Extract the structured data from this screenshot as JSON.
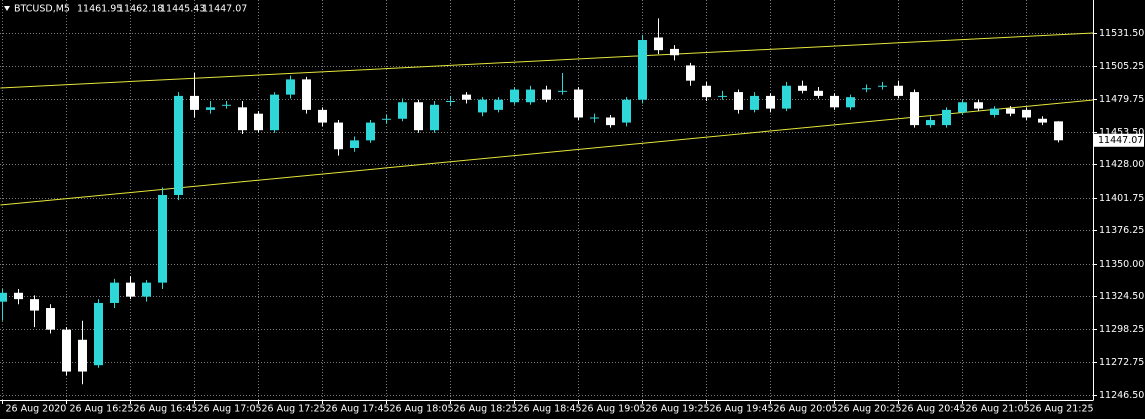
{
  "chart_data": {
    "type": "candlestick",
    "symbol": "BTCUSD,M5",
    "categories": [
      "26 Aug 2020",
      null,
      null,
      null,
      "26 Aug 16:25",
      null,
      null,
      null,
      "26 Aug 16:45",
      null,
      null,
      null,
      "26 Aug 17:05",
      null,
      null,
      null,
      "26 Aug 17:25",
      null,
      null,
      null,
      "26 Aug 17:45",
      null,
      null,
      null,
      "26 Aug 18:05",
      null,
      null,
      null,
      "26 Aug 18:25",
      null,
      null,
      null,
      "26 Aug 18:45",
      null,
      null,
      null,
      "26 Aug 19:05",
      null,
      null,
      null,
      "26 Aug 19:25",
      null,
      null,
      null,
      "26 Aug 19:45",
      null,
      null,
      null,
      "26 Aug 20:05",
      null,
      null,
      null,
      "26 Aug 20:25",
      null,
      null,
      null,
      "26 Aug 20:45",
      null,
      null,
      null,
      "26 Aug 21:05",
      null,
      null,
      null,
      "26 Aug 21:25",
      null,
      null
    ],
    "open": [
      11320,
      11327,
      11322,
      11315,
      11298,
      11290,
      11270,
      11319,
      11335,
      11324,
      11335,
      11404,
      11482,
      11471,
      11475,
      11473,
      11468,
      11455,
      11483,
      11495,
      11471,
      11461,
      11441,
      11447,
      11464,
      11464,
      11477,
      11455,
      11478,
      11483,
      11469,
      11471,
      11477,
      11477,
      11487,
      11486,
      11487,
      11465,
      11465,
      11461,
      11479,
      11528,
      11519,
      11506,
      11490,
      11482,
      11485,
      11471,
      11482,
      11472,
      11490,
      11486,
      11482,
      11473,
      11488,
      11490,
      11490,
      11485,
      11459,
      11459,
      11469,
      11477,
      11467,
      11472,
      11471,
      11464,
      11461.95
    ],
    "high": [
      11330,
      11330,
      11325,
      11318,
      11300,
      11305,
      11322,
      11338,
      11340,
      11337,
      11410,
      11485,
      11500,
      11478,
      11478,
      11478,
      11470,
      11485,
      11498,
      11497,
      11473,
      11463,
      11450,
      11463,
      11467,
      11480,
      11479,
      11478,
      11482,
      11485,
      11481,
      11481,
      11489,
      11490,
      11490,
      11500,
      11489,
      11468,
      11467,
      11481,
      11530,
      11543,
      11522,
      11508,
      11493,
      11486,
      11487,
      11485,
      11484,
      11493,
      11494,
      11489,
      11484,
      11483,
      11491,
      11493,
      11494,
      11487,
      11466,
      11473,
      11479,
      11479,
      11474,
      11474,
      11473,
      11466,
      11462.18
    ],
    "low": [
      11305,
      11318,
      11300,
      11295,
      11262,
      11255,
      11268,
      11315,
      11322,
      11320,
      11330,
      11400,
      11465,
      11468,
      11472,
      11452,
      11453,
      11453,
      11480,
      11468,
      11458,
      11435,
      11438,
      11445,
      11460,
      11462,
      11453,
      11453,
      11474,
      11476,
      11466,
      11469,
      11475,
      11475,
      11477,
      11483,
      11463,
      11461,
      11457,
      11458,
      11476,
      11515,
      11510,
      11490,
      11478,
      11479,
      11468,
      11469,
      11469,
      11470,
      11484,
      11480,
      11471,
      11471,
      11485,
      11487,
      11480,
      11457,
      11457,
      11457,
      11467,
      11470,
      11465,
      11466,
      11463,
      11459,
      11445.43
    ],
    "close": [
      11327,
      11322,
      11313,
      11298,
      11265,
      11265,
      11319,
      11335,
      11324,
      11335,
      11404,
      11482,
      11471,
      11473,
      11475,
      11455,
      11455,
      11483,
      11495,
      11471,
      11461,
      11440,
      11447,
      11461,
      11464,
      11477,
      11455,
      11475,
      11478,
      11479,
      11479,
      11479,
      11487,
      11487,
      11479,
      11486,
      11465,
      11465,
      11459,
      11479,
      11526,
      11518,
      11514,
      11494,
      11481,
      11482,
      11471,
      11482,
      11472,
      11490,
      11486,
      11482,
      11473,
      11481,
      11488,
      11490,
      11482,
      11459,
      11463,
      11471,
      11477,
      11472,
      11472,
      11468,
      11465,
      11461,
      11447.07
    ],
    "bull_color": "#2fd8d8",
    "bear_color": "#ffffff",
    "trendlines": [
      {
        "color": "#e6e63c",
        "x": [
          -0.1,
          68.2
        ],
        "values": [
          11488.2,
          11531.5
        ]
      },
      {
        "color": "#e6e63c",
        "x": [
          -0.1,
          68.2
        ],
        "values": [
          11396.1,
          11478.8
        ]
      }
    ],
    "ylim": [
      11242.6,
      11557.5
    ],
    "yticks": [
      {
        "value": 11531.5,
        "label": "11531.50"
      },
      {
        "value": 11505.25,
        "label": "11505.25"
      },
      {
        "value": 11479.75,
        "label": "11479.75"
      },
      {
        "value": 11453.5,
        "label": "11453.50"
      },
      {
        "value": 11428,
        "label": "11428.00"
      },
      {
        "value": 11401.75,
        "label": "11401.75"
      },
      {
        "value": 11376.25,
        "label": "11376.25"
      },
      {
        "value": 11350,
        "label": "11350.00"
      },
      {
        "value": 11324.5,
        "label": "11324.50"
      },
      {
        "value": 11298.25,
        "label": "11298.25"
      },
      {
        "value": 11272.75,
        "label": "11272.75"
      },
      {
        "value": 11246.5,
        "label": "11246.50"
      }
    ],
    "grid": true
  }
}
